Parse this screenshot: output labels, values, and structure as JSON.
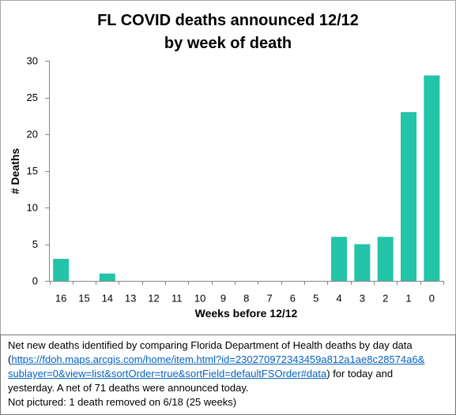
{
  "chart_data": {
    "type": "bar",
    "title": "FL COVID deaths announced 12/12 by week of death",
    "xlabel": "Weeks before 12/12",
    "ylabel": "# Deaths",
    "categories": [
      "16",
      "15",
      "14",
      "13",
      "12",
      "11",
      "10",
      "9",
      "8",
      "7",
      "6",
      "5",
      "4",
      "3",
      "2",
      "1",
      "0"
    ],
    "values": [
      3,
      0,
      1,
      0,
      0,
      0,
      0,
      0,
      0,
      0,
      0,
      0,
      6,
      5,
      6,
      23,
      28
    ],
    "ylim": [
      0,
      30
    ],
    "yticks": [
      0,
      5,
      10,
      15,
      20,
      25,
      30
    ],
    "grid": false,
    "legend": "none",
    "bar_color": "#23C4A7"
  },
  "note": {
    "text_before_link": "Net new deaths identified by comparing Florida Department of Health deaths by day data (",
    "link": "https://fdoh.maps.arcgis.com/home/item.html?id=230270972343459a812a1ae8c28574a6&sublayer=0&view=list&sortOrder=true&sortField=defaultFSOrder#data",
    "text_after_link": ") for today and yesterday. A net of 71 deaths were announced today.",
    "footnote": "Not pictured: 1 death removed on 6/18 (25 weeks)"
  }
}
